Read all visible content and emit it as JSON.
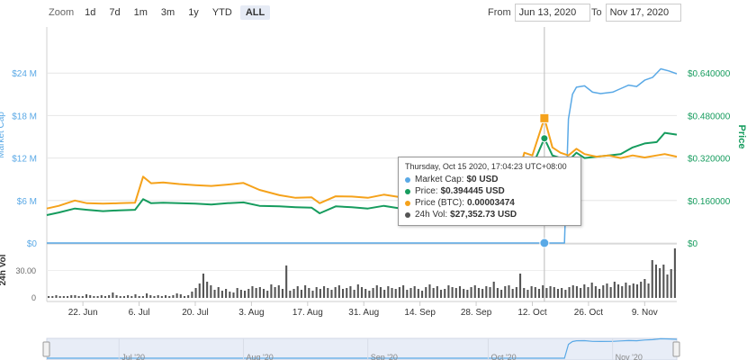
{
  "zoom": {
    "label": "Zoom",
    "buttons": [
      "1d",
      "7d",
      "1m",
      "3m",
      "1y",
      "YTD",
      "ALL"
    ],
    "active": "ALL"
  },
  "range": {
    "from_label": "From",
    "from_value": "Jun 13, 2020",
    "to_label": "To",
    "to_value": "Nov 17, 2020"
  },
  "colors": {
    "market_cap": "#5aa9e6",
    "price": "#169c5e",
    "price_btc": "#f5a21b",
    "volume": "#555555"
  },
  "tooltip": {
    "date": "Thursday, Oct 15 2020, 17:04:23 UTC+08:00",
    "rows": [
      {
        "name": "Market Cap:",
        "value": "$0 USD",
        "color": "#5aa9e6"
      },
      {
        "name": "Price:",
        "value": "$0.394445 USD",
        "color": "#169c5e"
      },
      {
        "name": "Price (BTC):",
        "value": "0.00003474",
        "color": "#f5a21b"
      },
      {
        "name": "24h Vol:",
        "value": "$27,352.73 USD",
        "color": "#555555"
      }
    ]
  },
  "chart_data": {
    "type": "line",
    "x_ticks": [
      "22. Jun",
      "6. Jul",
      "20. Jul",
      "3. Aug",
      "17. Aug",
      "31. Aug",
      "14. Sep",
      "28. Sep",
      "12. Oct",
      "26. Oct",
      "9. Nov"
    ],
    "x_tick_dates": [
      "2020-06-22",
      "2020-07-06",
      "2020-07-20",
      "2020-08-03",
      "2020-08-17",
      "2020-08-31",
      "2020-09-14",
      "2020-09-28",
      "2020-10-12",
      "2020-10-26",
      "2020-11-09"
    ],
    "xlim": [
      "2020-06-13",
      "2020-11-17"
    ],
    "left_axis": {
      "label": "Market Cap",
      "ticks": [
        "$0",
        "$6 M",
        "$12 M",
        "$18 M",
        "$24 M"
      ],
      "tick_values": [
        0,
        6000000,
        12000000,
        18000000,
        24000000
      ],
      "ylim": [
        0,
        30000000
      ]
    },
    "right_axis": {
      "label": "Price",
      "ticks": [
        "$0",
        "$0.160000",
        "$0.320000",
        "$0.480000",
        "$0.640000"
      ],
      "tick_values": [
        0,
        0.16,
        0.32,
        0.48,
        0.64
      ],
      "ylim": [
        0,
        0.8
      ]
    },
    "volume_axis": {
      "label": "24h Vol",
      "ticks": [
        "0",
        "30.00"
      ],
      "tick_values": [
        0,
        30
      ],
      "ylim": [
        0,
        60
      ]
    },
    "navigator_ticks": [
      "Jul '20",
      "Aug '20",
      "Sep '20",
      "Oct '20",
      "Nov '20"
    ],
    "series": [
      {
        "name": "Market Cap",
        "axis": "left",
        "points": [
          [
            "2020-06-13",
            0
          ],
          [
            "2020-07-01",
            0
          ],
          [
            "2020-08-01",
            0
          ],
          [
            "2020-09-01",
            0
          ],
          [
            "2020-10-01",
            0
          ],
          [
            "2020-10-15",
            0
          ],
          [
            "2020-10-20",
            0
          ],
          [
            "2020-10-21",
            17500000
          ],
          [
            "2020-10-22",
            21000000
          ],
          [
            "2020-10-23",
            22000000
          ],
          [
            "2020-10-25",
            22200000
          ],
          [
            "2020-10-27",
            21300000
          ],
          [
            "2020-10-29",
            21100000
          ],
          [
            "2020-11-01",
            21300000
          ],
          [
            "2020-11-03",
            21800000
          ],
          [
            "2020-11-05",
            22300000
          ],
          [
            "2020-11-07",
            22100000
          ],
          [
            "2020-11-09",
            23000000
          ],
          [
            "2020-11-11",
            23400000
          ],
          [
            "2020-11-13",
            24600000
          ],
          [
            "2020-11-15",
            24300000
          ],
          [
            "2020-11-17",
            23900000
          ]
        ]
      },
      {
        "name": "Price",
        "axis": "right",
        "points": [
          [
            "2020-06-13",
            0.105
          ],
          [
            "2020-06-16",
            0.115
          ],
          [
            "2020-06-20",
            0.13
          ],
          [
            "2020-06-23",
            0.125
          ],
          [
            "2020-06-27",
            0.12
          ],
          [
            "2020-07-01",
            0.123
          ],
          [
            "2020-07-05",
            0.125
          ],
          [
            "2020-07-07",
            0.165
          ],
          [
            "2020-07-09",
            0.15
          ],
          [
            "2020-07-12",
            0.152
          ],
          [
            "2020-07-16",
            0.15
          ],
          [
            "2020-07-20",
            0.148
          ],
          [
            "2020-07-24",
            0.145
          ],
          [
            "2020-07-28",
            0.15
          ],
          [
            "2020-08-01",
            0.153
          ],
          [
            "2020-08-05",
            0.14
          ],
          [
            "2020-08-10",
            0.138
          ],
          [
            "2020-08-14",
            0.135
          ],
          [
            "2020-08-18",
            0.133
          ],
          [
            "2020-08-20",
            0.112
          ],
          [
            "2020-08-24",
            0.138
          ],
          [
            "2020-08-28",
            0.135
          ],
          [
            "2020-09-01",
            0.13
          ],
          [
            "2020-09-05",
            0.14
          ],
          [
            "2020-09-10",
            0.128
          ],
          [
            "2020-09-15",
            0.12
          ],
          [
            "2020-09-20",
            0.125
          ],
          [
            "2020-09-25",
            0.13
          ],
          [
            "2020-09-30",
            0.135
          ],
          [
            "2020-10-05",
            0.15
          ],
          [
            "2020-10-08",
            0.185
          ],
          [
            "2020-10-10",
            0.3
          ],
          [
            "2020-10-12",
            0.29
          ],
          [
            "2020-10-15",
            0.394
          ],
          [
            "2020-10-17",
            0.33
          ],
          [
            "2020-10-19",
            0.32
          ],
          [
            "2020-10-21",
            0.31
          ],
          [
            "2020-10-23",
            0.34
          ],
          [
            "2020-10-25",
            0.32
          ],
          [
            "2020-10-28",
            0.325
          ],
          [
            "2020-10-31",
            0.33
          ],
          [
            "2020-11-03",
            0.335
          ],
          [
            "2020-11-06",
            0.36
          ],
          [
            "2020-11-09",
            0.375
          ],
          [
            "2020-11-12",
            0.38
          ],
          [
            "2020-11-14",
            0.415
          ],
          [
            "2020-11-17",
            0.408
          ]
        ]
      },
      {
        "name": "Price (BTC)",
        "axis": "right",
        "points": [
          [
            "2020-06-13",
            0.13
          ],
          [
            "2020-06-16",
            0.14
          ],
          [
            "2020-06-20",
            0.16
          ],
          [
            "2020-06-23",
            0.15
          ],
          [
            "2020-06-27",
            0.148
          ],
          [
            "2020-07-01",
            0.15
          ],
          [
            "2020-07-05",
            0.152
          ],
          [
            "2020-07-07",
            0.25
          ],
          [
            "2020-07-09",
            0.225
          ],
          [
            "2020-07-12",
            0.228
          ],
          [
            "2020-07-16",
            0.222
          ],
          [
            "2020-07-20",
            0.218
          ],
          [
            "2020-07-24",
            0.215
          ],
          [
            "2020-07-28",
            0.22
          ],
          [
            "2020-08-01",
            0.226
          ],
          [
            "2020-08-05",
            0.2
          ],
          [
            "2020-08-10",
            0.18
          ],
          [
            "2020-08-14",
            0.17
          ],
          [
            "2020-08-18",
            0.172
          ],
          [
            "2020-08-20",
            0.15
          ],
          [
            "2020-08-24",
            0.176
          ],
          [
            "2020-08-28",
            0.175
          ],
          [
            "2020-09-01",
            0.17
          ],
          [
            "2020-09-05",
            0.182
          ],
          [
            "2020-09-10",
            0.17
          ],
          [
            "2020-09-15",
            0.165
          ],
          [
            "2020-09-20",
            0.168
          ],
          [
            "2020-09-25",
            0.17
          ],
          [
            "2020-09-30",
            0.175
          ],
          [
            "2020-10-05",
            0.19
          ],
          [
            "2020-10-08",
            0.23
          ],
          [
            "2020-10-10",
            0.34
          ],
          [
            "2020-10-12",
            0.33
          ],
          [
            "2020-10-15",
            0.47
          ],
          [
            "2020-10-17",
            0.36
          ],
          [
            "2020-10-19",
            0.34
          ],
          [
            "2020-10-21",
            0.33
          ],
          [
            "2020-10-23",
            0.355
          ],
          [
            "2020-10-25",
            0.335
          ],
          [
            "2020-10-28",
            0.325
          ],
          [
            "2020-10-31",
            0.33
          ],
          [
            "2020-11-03",
            0.32
          ],
          [
            "2020-11-06",
            0.33
          ],
          [
            "2020-11-09",
            0.322
          ],
          [
            "2020-11-12",
            0.33
          ],
          [
            "2020-11-14",
            0.335
          ],
          [
            "2020-11-17",
            0.325
          ]
        ]
      },
      {
        "name": "24h Vol",
        "axis": "volume",
        "type": "bar",
        "values": [
          2,
          2,
          3,
          2,
          2,
          2,
          3,
          3,
          2,
          2,
          4,
          3,
          2,
          2,
          3,
          2,
          3,
          6,
          3,
          2,
          2,
          3,
          2,
          4,
          2,
          2,
          5,
          3,
          2,
          3,
          2,
          3,
          2,
          3,
          5,
          4,
          2,
          3,
          7,
          11,
          16,
          27,
          18,
          14,
          9,
          12,
          8,
          10,
          7,
          6,
          11,
          9,
          8,
          10,
          13,
          11,
          12,
          10,
          8,
          15,
          12,
          14,
          10,
          36,
          8,
          10,
          13,
          9,
          14,
          11,
          8,
          12,
          10,
          13,
          11,
          9,
          12,
          14,
          10,
          11,
          13,
          9,
          15,
          12,
          10,
          8,
          11,
          14,
          12,
          9,
          13,
          11,
          10,
          12,
          14,
          9,
          11,
          13,
          10,
          8,
          12,
          15,
          11,
          13,
          9,
          10,
          14,
          12,
          11,
          13,
          10,
          9,
          12,
          14,
          11,
          10,
          13,
          12,
          18,
          11,
          9,
          13,
          14,
          10,
          12,
          27,
          11,
          9,
          13,
          12,
          10,
          14,
          11,
          13,
          12,
          10,
          11,
          9,
          12,
          14,
          13,
          11,
          15,
          12,
          17,
          13,
          10,
          14,
          16,
          12,
          18,
          15,
          13,
          17,
          14,
          16,
          15,
          18,
          21,
          16,
          42,
          37,
          33,
          37,
          26,
          32,
          55
        ]
      }
    ]
  }
}
